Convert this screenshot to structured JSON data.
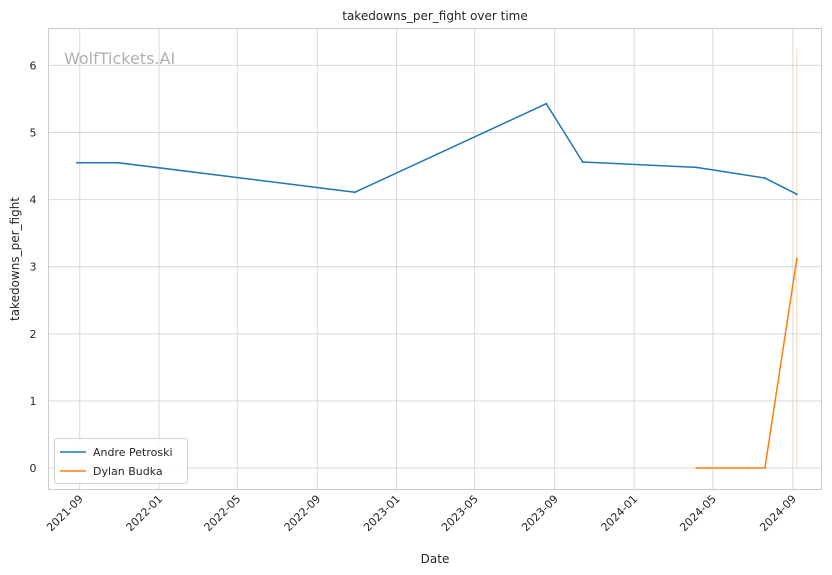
{
  "chart_data": {
    "type": "line",
    "title": "takedowns_per_fight over time",
    "xlabel": "Date",
    "ylabel": "takedowns_per_fight",
    "watermark": "WolfTickets.AI",
    "x_range": [
      "2021-07-15",
      "2024-10-15"
    ],
    "ylim": [
      -0.32,
      6.55
    ],
    "x_ticks": [
      "2021-09",
      "2022-01",
      "2022-05",
      "2022-09",
      "2023-01",
      "2023-05",
      "2023-09",
      "2024-01",
      "2024-05",
      "2024-09"
    ],
    "y_ticks": [
      0,
      1,
      2,
      3,
      4,
      5,
      6
    ],
    "grid": true,
    "legend_position": "lower-left",
    "series": [
      {
        "name": "Andre Petroski",
        "color": "#1f77b4",
        "points": [
          {
            "x": "2021-08-28",
            "y": 4.55
          },
          {
            "x": "2021-10-30",
            "y": 4.55
          },
          {
            "x": "2022-10-29",
            "y": 4.11
          },
          {
            "x": "2023-08-19",
            "y": 5.43
          },
          {
            "x": "2023-10-14",
            "y": 4.56
          },
          {
            "x": "2024-04-06",
            "y": 4.48
          },
          {
            "x": "2024-07-20",
            "y": 4.32
          },
          {
            "x": "2024-09-07",
            "y": 4.08
          }
        ]
      },
      {
        "name": "Dylan Budka",
        "color": "#ff7f0e",
        "points": [
          {
            "x": "2024-04-06",
            "y": 0.0
          },
          {
            "x": "2024-07-20",
            "y": 0.0
          },
          {
            "x": "2024-09-07",
            "y": 3.12
          }
        ]
      }
    ],
    "annotation_line": {
      "x": "2024-09-07",
      "y_from": 0.0,
      "y_to": 6.25,
      "color": "#ff7f0e"
    }
  }
}
